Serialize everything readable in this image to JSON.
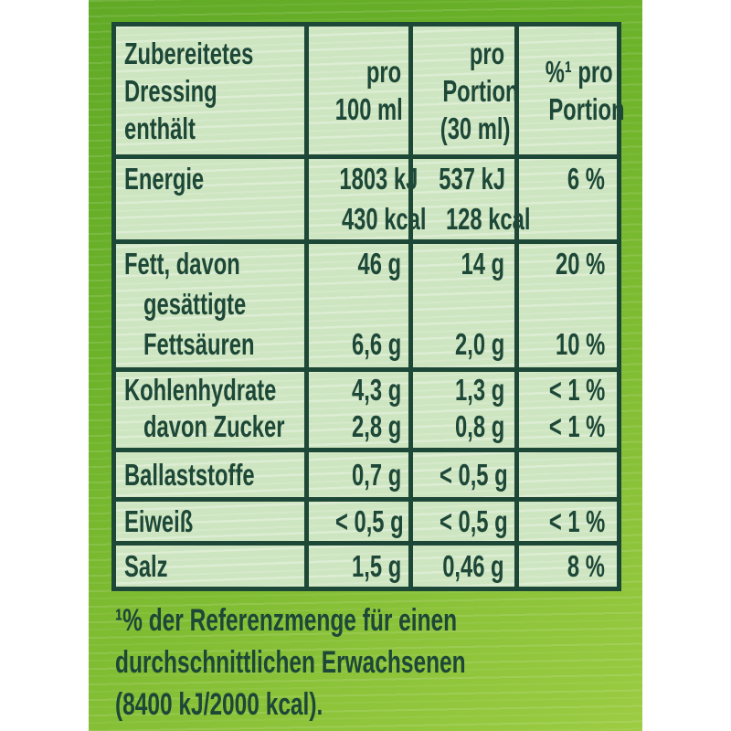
{
  "colors": {
    "ink_green": "#1d4737",
    "cell_green": "#cde5c0",
    "background_green_top": "#61aa26",
    "background_green_bottom": "#9ccc43",
    "page_margin": "#ffffff"
  },
  "table": {
    "header": {
      "product": [
        "Zubereitetes",
        "Dressing",
        "enthält"
      ],
      "per100": [
        "pro",
        "100 ml"
      ],
      "portion": [
        "pro",
        "Portion",
        "(30 ml)"
      ],
      "percent": [
        "%¹ pro",
        "Portion"
      ]
    },
    "rows": [
      {
        "id": "energie",
        "labels": [
          "Energie"
        ],
        "per100": [
          "1803 kJ",
          "430 kcal"
        ],
        "portion": [
          "537 kJ",
          "128 kcal"
        ],
        "percent": [
          "6 %"
        ]
      },
      {
        "id": "fett",
        "labels": [
          "Fett, davon",
          "gesättigte",
          "Fettsäuren"
        ],
        "per100": [
          "46 g",
          "6,6 g"
        ],
        "portion": [
          "14 g",
          "2,0 g"
        ],
        "percent": [
          "20 %",
          "10 %"
        ]
      },
      {
        "id": "kohlenhydrate",
        "labels": [
          "Kohlenhydrate",
          "davon Zucker"
        ],
        "per100": [
          "4,3 g",
          "2,8 g"
        ],
        "portion": [
          "1,3 g",
          "0,8 g"
        ],
        "percent": [
          "< 1 %",
          "< 1 %"
        ]
      },
      {
        "id": "ballaststoffe",
        "labels": [
          "Ballaststoffe"
        ],
        "per100": [
          "0,7 g"
        ],
        "portion": [
          "< 0,5 g"
        ],
        "percent": [
          ""
        ]
      },
      {
        "id": "eiweiss",
        "labels": [
          "Eiweiß"
        ],
        "per100": [
          "< 0,5 g"
        ],
        "portion": [
          "< 0,5 g"
        ],
        "percent": [
          "< 1 %"
        ]
      },
      {
        "id": "salz",
        "labels": [
          "Salz"
        ],
        "per100": [
          "1,5 g"
        ],
        "portion": [
          "0,46 g"
        ],
        "percent": [
          "8 %"
        ]
      }
    ]
  },
  "footnote": {
    "lines": [
      "¹% der Referenzmenge für einen",
      "durchschnittlichen Erwachsenen",
      "(8400 kJ/2000 kcal)."
    ]
  }
}
